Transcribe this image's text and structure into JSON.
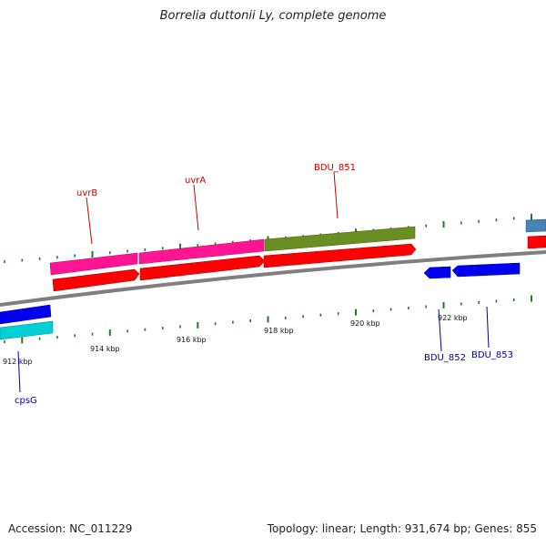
{
  "title": "Borrelia duttonii Ly, complete genome",
  "footer": {
    "accession": "Accession: NC_011229",
    "stats": "Topology: linear; Length: 931,674 bp; Genes: 855"
  },
  "colors": {
    "backbone": "#7f7f7f",
    "tick": "#1e7d1e",
    "forward_label": "#cc0000",
    "reverse_label": "#00009c",
    "cds_red": "#ff0000",
    "gene_pink": "#ff1493",
    "gene_olive": "#6b8e23",
    "gene_blue": "#0000ee",
    "gene_cyan": "#00cfd6",
    "gene_steelblue": "#4682b4"
  },
  "scale_labels": [
    "912 kbp",
    "914 kbp",
    "916 kbp",
    "918 kbp",
    "920 kbp",
    "922 kbp"
  ],
  "gene_labels": {
    "uvrB": "uvrB",
    "uvrA": "uvrA",
    "BDU_851": "BDU_851",
    "BDU_852": "BDU_852",
    "BDU_853": "BDU_853",
    "cpsG": "cpsG"
  }
}
